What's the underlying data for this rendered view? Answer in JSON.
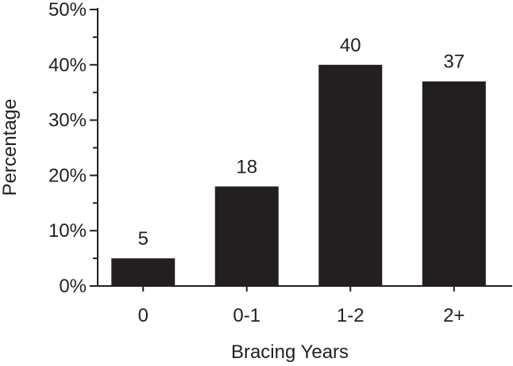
{
  "chart_data": {
    "type": "bar",
    "title": "",
    "xlabel": "Bracing Years",
    "ylabel": "Percentage",
    "categories": [
      "0",
      "0-1",
      "1-2",
      "2+"
    ],
    "values": [
      5,
      18,
      40,
      37
    ],
    "data_labels": [
      "5",
      "18",
      "40",
      "37"
    ],
    "ylim": [
      0,
      50
    ],
    "y_ticks": [
      0,
      10,
      20,
      30,
      40,
      50
    ],
    "y_tick_labels": [
      "0%",
      "10%",
      "20%",
      "30%",
      "40%",
      "50%"
    ],
    "grid": false,
    "legend": "none",
    "bar_color": "#231f20",
    "axis_color": "#231f20"
  }
}
